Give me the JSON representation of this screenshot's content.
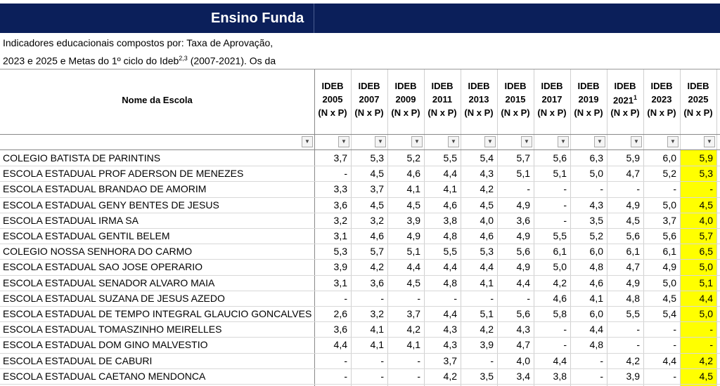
{
  "title": "Ensino Funda",
  "description": {
    "line1": "Indicadores educacionais compostos por: Taxa de Aprovação,",
    "line2_a": "2023 e 2025 e Metas do 1º ciclo do Ideb",
    "line2_sup": "2,3",
    "line2_b": " (2007-2021). Os da"
  },
  "table": {
    "name_header": "Nome da Escola",
    "columns": [
      {
        "label": "IDEB",
        "year": "2005",
        "unit": "(N x P)"
      },
      {
        "label": "IDEB",
        "year": "2007",
        "unit": "(N x P)"
      },
      {
        "label": "IDEB",
        "year": "2009",
        "unit": "(N x P)"
      },
      {
        "label": "IDEB",
        "year": "2011",
        "unit": "(N x P)"
      },
      {
        "label": "IDEB",
        "year": "2013",
        "unit": "(N x P)"
      },
      {
        "label": "IDEB",
        "year": "2015",
        "unit": "(N x P)"
      },
      {
        "label": "IDEB",
        "year": "2017",
        "unit": "(N x P)"
      },
      {
        "label": "IDEB",
        "year": "2019",
        "unit": "(N x P)"
      },
      {
        "label": "IDEB",
        "year": "2021",
        "sup": "1",
        "unit": "(N x P)"
      },
      {
        "label": "IDEB",
        "year": "2023",
        "unit": "(N x P)"
      },
      {
        "label": "IDEB",
        "year": "2025",
        "unit": "(N x P)"
      }
    ],
    "rows": [
      {
        "name": "COLEGIO BATISTA DE PARINTINS",
        "values": [
          "3,7",
          "5,3",
          "5,2",
          "5,5",
          "5,4",
          "5,7",
          "5,6",
          "6,3",
          "5,9",
          "6,0",
          "5,9"
        ]
      },
      {
        "name": "ESCOLA ESTADUAL PROF ADERSON DE MENEZES",
        "values": [
          "-",
          "4,5",
          "4,6",
          "4,4",
          "4,3",
          "5,1",
          "5,1",
          "5,0",
          "4,7",
          "5,2",
          "5,3"
        ]
      },
      {
        "name": "ESCOLA ESTADUAL BRANDAO DE AMORIM",
        "values": [
          "3,3",
          "3,7",
          "4,1",
          "4,1",
          "4,2",
          "-",
          "-",
          "-",
          "-",
          "-",
          "-"
        ]
      },
      {
        "name": "ESCOLA ESTADUAL GENY BENTES DE JESUS",
        "values": [
          "3,6",
          "4,5",
          "4,5",
          "4,6",
          "4,5",
          "4,9",
          "-",
          "4,3",
          "4,9",
          "5,0",
          "4,5"
        ]
      },
      {
        "name": "ESCOLA ESTADUAL IRMA SA",
        "values": [
          "3,2",
          "3,2",
          "3,9",
          "3,8",
          "4,0",
          "3,6",
          "-",
          "3,5",
          "4,5",
          "3,7",
          "4,0"
        ]
      },
      {
        "name": "ESCOLA ESTADUAL GENTIL BELEM",
        "values": [
          "3,1",
          "4,6",
          "4,9",
          "4,8",
          "4,6",
          "4,9",
          "5,5",
          "5,2",
          "5,6",
          "5,6",
          "5,7"
        ]
      },
      {
        "name": "COLEGIO NOSSA SENHORA DO CARMO",
        "values": [
          "5,3",
          "5,7",
          "5,1",
          "5,5",
          "5,3",
          "5,6",
          "6,1",
          "6,0",
          "6,1",
          "6,1",
          "6,5"
        ]
      },
      {
        "name": "ESCOLA ESTADUAL SAO JOSE OPERARIO",
        "values": [
          "3,9",
          "4,2",
          "4,4",
          "4,4",
          "4,4",
          "4,9",
          "5,0",
          "4,8",
          "4,7",
          "4,9",
          "5,0"
        ]
      },
      {
        "name": "ESCOLA ESTADUAL SENADOR ALVARO MAIA",
        "values": [
          "3,1",
          "3,6",
          "4,5",
          "4,8",
          "4,1",
          "4,4",
          "4,2",
          "4,6",
          "4,9",
          "5,0",
          "5,1"
        ]
      },
      {
        "name": "ESCOLA ESTADUAL SUZANA DE JESUS AZEDO",
        "values": [
          "-",
          "-",
          "-",
          "-",
          "-",
          "-",
          "4,6",
          "4,1",
          "4,8",
          "4,5",
          "4,4"
        ]
      },
      {
        "name": "ESCOLA ESTADUAL DE TEMPO INTEGRAL GLAUCIO GONCALVES",
        "values": [
          "2,6",
          "3,2",
          "3,7",
          "4,4",
          "5,1",
          "5,6",
          "5,8",
          "6,0",
          "5,5",
          "5,4",
          "5,0"
        ]
      },
      {
        "name": "ESCOLA ESTADUAL TOMASZINHO MEIRELLES",
        "values": [
          "3,6",
          "4,1",
          "4,2",
          "4,3",
          "4,2",
          "4,3",
          "-",
          "4,4",
          "-",
          "-",
          "-"
        ]
      },
      {
        "name": "ESCOLA ESTADUAL DOM GINO MALVESTIO",
        "values": [
          "4,4",
          "4,1",
          "4,1",
          "4,3",
          "3,9",
          "4,7",
          "-",
          "4,8",
          "-",
          "-",
          "-"
        ]
      },
      {
        "name": "ESCOLA ESTADUAL DE CABURI",
        "values": [
          "-",
          "-",
          "-",
          "3,7",
          "-",
          "4,0",
          "4,4",
          "-",
          "4,2",
          "4,4",
          "4,2"
        ]
      },
      {
        "name": "ESCOLA ESTADUAL CAETANO MENDONCA",
        "values": [
          "-",
          "-",
          "-",
          "4,2",
          "3,5",
          "3,4",
          "3,8",
          "-",
          "3,9",
          "-",
          "4,5"
        ]
      }
    ]
  }
}
